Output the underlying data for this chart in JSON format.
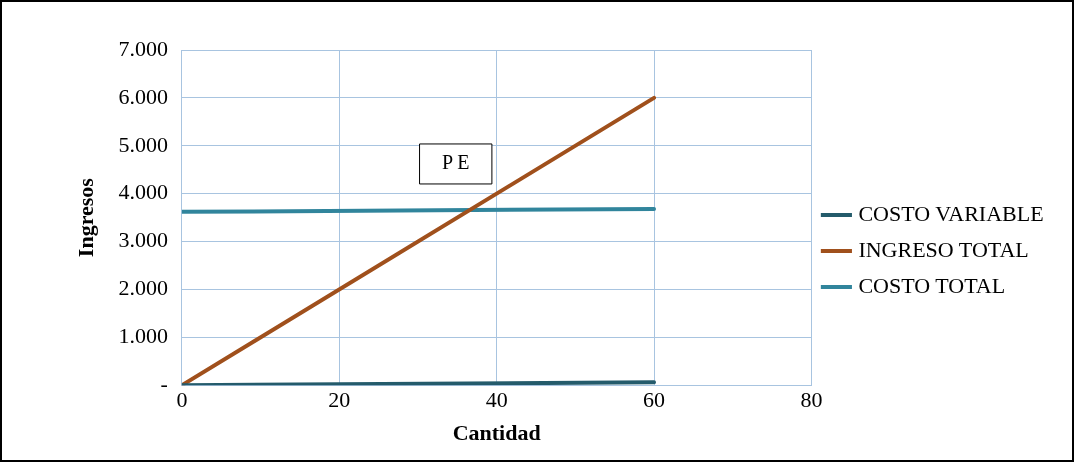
{
  "chart_data": {
    "type": "line",
    "xlabel": "Cantidad",
    "ylabel": "Ingresos",
    "annotations": [
      "P E"
    ],
    "x": [
      0,
      60
    ],
    "xlim": [
      0,
      80
    ],
    "xticks": [
      0,
      20,
      40,
      60,
      80
    ],
    "ylim": [
      0,
      7000
    ],
    "yticks": [
      {
        "value": 0,
        "label": "-"
      },
      {
        "value": 1000,
        "label": "1.000"
      },
      {
        "value": 2000,
        "label": "2.000"
      },
      {
        "value": 3000,
        "label": "3.000"
      },
      {
        "value": 4000,
        "label": "4.000"
      },
      {
        "value": 5000,
        "label": "5.000"
      },
      {
        "value": 6000,
        "label": "6.000"
      },
      {
        "value": 7000,
        "label": "7.000"
      }
    ],
    "grid": true,
    "legend": "right",
    "marker": "none",
    "line_style": "solid",
    "series": [
      {
        "name": "COSTO VARIABLE",
        "color": "#245b6b",
        "values": [
          0,
          60
        ]
      },
      {
        "name": "INGRESO TOTAL",
        "color": "#a0501c",
        "values": [
          0,
          6000
        ]
      },
      {
        "name": "COSTO TOTAL",
        "color": "#31859c",
        "values": [
          3620,
          3680
        ]
      }
    ]
  }
}
